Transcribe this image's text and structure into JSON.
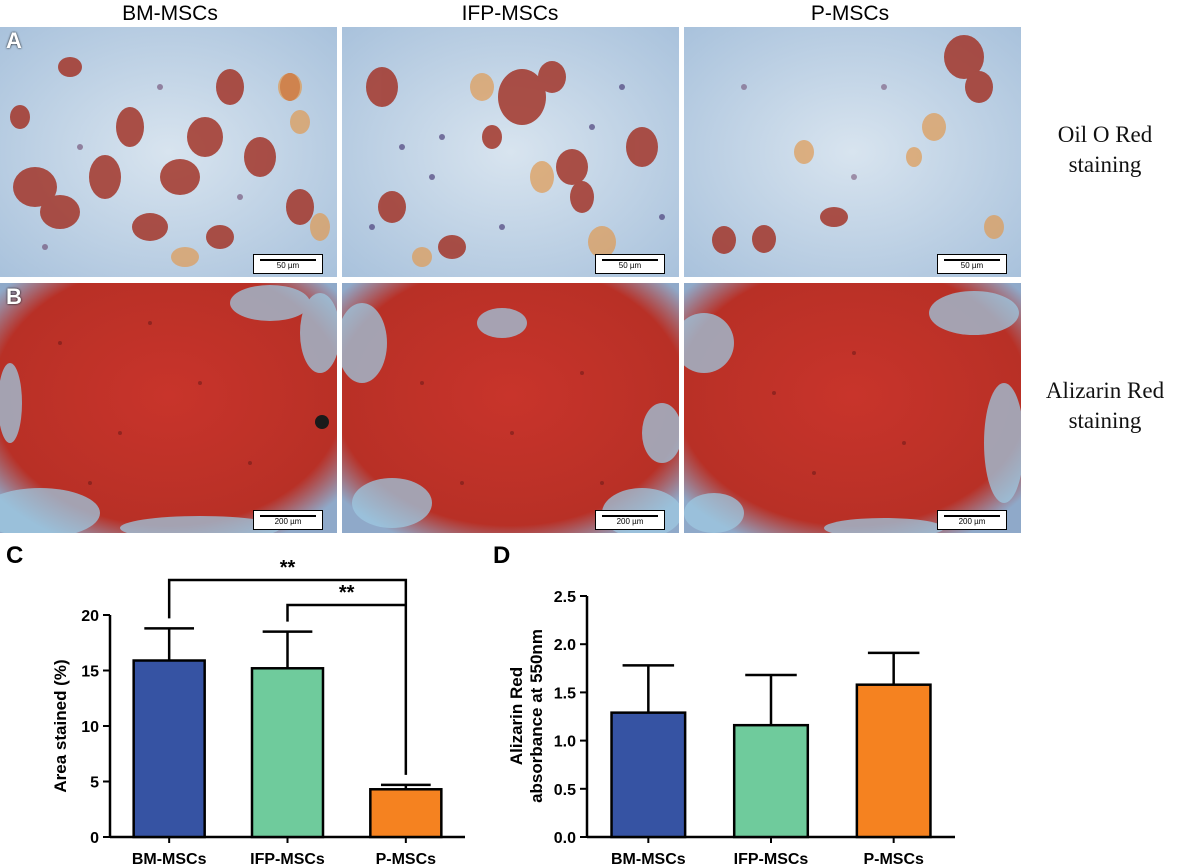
{
  "headers": {
    "col1": "BM-MSCs",
    "col2": "IFP-MSCs",
    "col3": "P-MSCs"
  },
  "side_labels": {
    "row1_line1": "Oil O Red",
    "row1_line2": "staining",
    "row2_line1": "Alizarin Red",
    "row2_line2": "staining"
  },
  "panel_letters": {
    "a": "A",
    "b": "B",
    "c": "C",
    "d": "D"
  },
  "scale_bars": {
    "row1": "50 µm",
    "row2": "200 µm"
  },
  "colors": {
    "bm": "#3653A3",
    "ifp": "#6FCB9C",
    "p": "#F58220",
    "oil_bg": "#b9cfe3",
    "alizarin": "#c0322a"
  },
  "chart_data": [
    {
      "type": "bar",
      "panel": "C",
      "categories": [
        "BM-MSCs",
        "IFP-MSCs",
        "P-MSCs"
      ],
      "values": [
        15.9,
        15.2,
        4.3
      ],
      "errors": [
        2.9,
        3.3,
        0.4
      ],
      "ylabel": "Area stained (%)",
      "xlabel": "",
      "ylim": [
        0,
        20
      ],
      "yticks": [
        "0",
        "5",
        "10",
        "15",
        "20"
      ],
      "annotations": [
        {
          "from": "BM-MSCs",
          "to": "P-MSCs",
          "label": "**"
        },
        {
          "from": "IFP-MSCs",
          "to": "P-MSCs",
          "label": "**"
        }
      ]
    },
    {
      "type": "bar",
      "panel": "D",
      "categories": [
        "BM-MSCs",
        "IFP-MSCs",
        "P-MSCs"
      ],
      "values": [
        1.29,
        1.16,
        1.58
      ],
      "errors": [
        0.49,
        0.52,
        0.33
      ],
      "ylabel_line1": "Alizarin Red",
      "ylabel_line2": "absorbance at 550nm",
      "xlabel": "",
      "ylim": [
        0,
        2.5
      ],
      "yticks": [
        "0.0",
        "0.5",
        "1.0",
        "1.5",
        "2.0",
        "2.5"
      ]
    }
  ]
}
